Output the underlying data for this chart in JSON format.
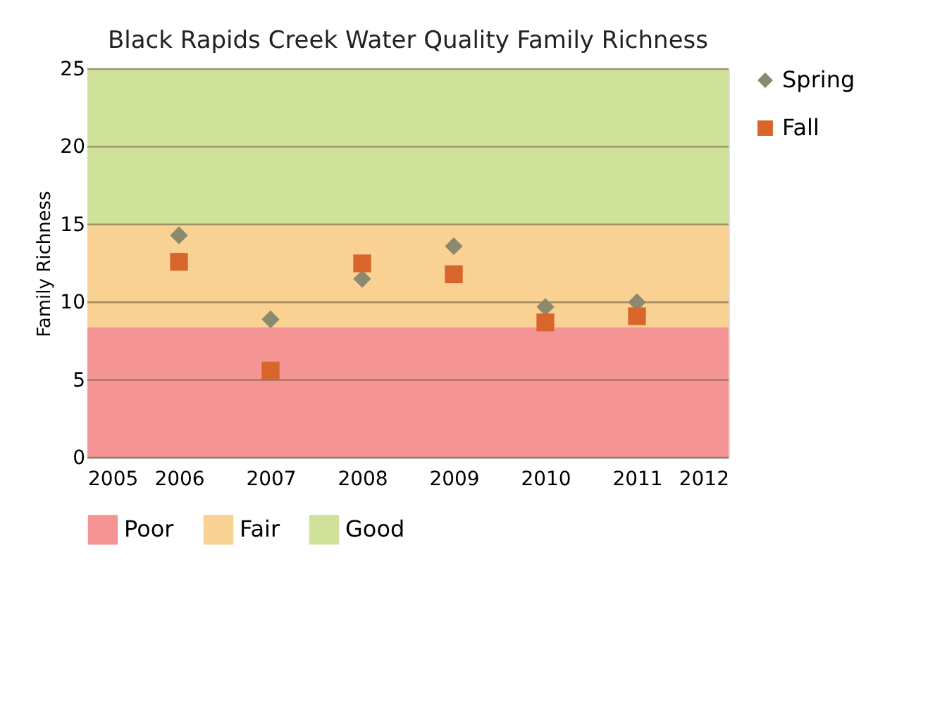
{
  "chart_data": {
    "type": "scatter",
    "title": "Black Rapids Creek Water Quality Family Richness",
    "ylabel": "Family Richness",
    "x": [
      2006,
      2007,
      2008,
      2009,
      2010,
      2011
    ],
    "series": [
      {
        "name": "Spring",
        "color": "#8c8a6e",
        "marker": "diamond",
        "values": [
          14.3,
          8.9,
          11.5,
          13.6,
          9.7,
          10.0
        ]
      },
      {
        "name": "Fall",
        "color": "#d8652b",
        "marker": "square",
        "values": [
          12.6,
          5.6,
          12.5,
          11.8,
          8.7,
          9.1
        ]
      }
    ],
    "xlim": [
      2005,
      2012
    ],
    "xticks": [
      2005,
      2006,
      2007,
      2008,
      2009,
      2010,
      2011,
      2012
    ],
    "ylim": [
      0,
      25
    ],
    "yticks": [
      0,
      5,
      10,
      15,
      20,
      25
    ],
    "bands": [
      {
        "axis": "y",
        "from": 0,
        "to": 8.4,
        "label": "Poor",
        "color": "#f49494"
      },
      {
        "axis": "y",
        "from": 8.4,
        "to": 15,
        "label": "Fair",
        "color": "#f9d193"
      },
      {
        "axis": "y",
        "from": 15,
        "to": 25,
        "label": "Good",
        "color": "#d0e29a"
      }
    ],
    "grid": "y",
    "legend": "right"
  }
}
